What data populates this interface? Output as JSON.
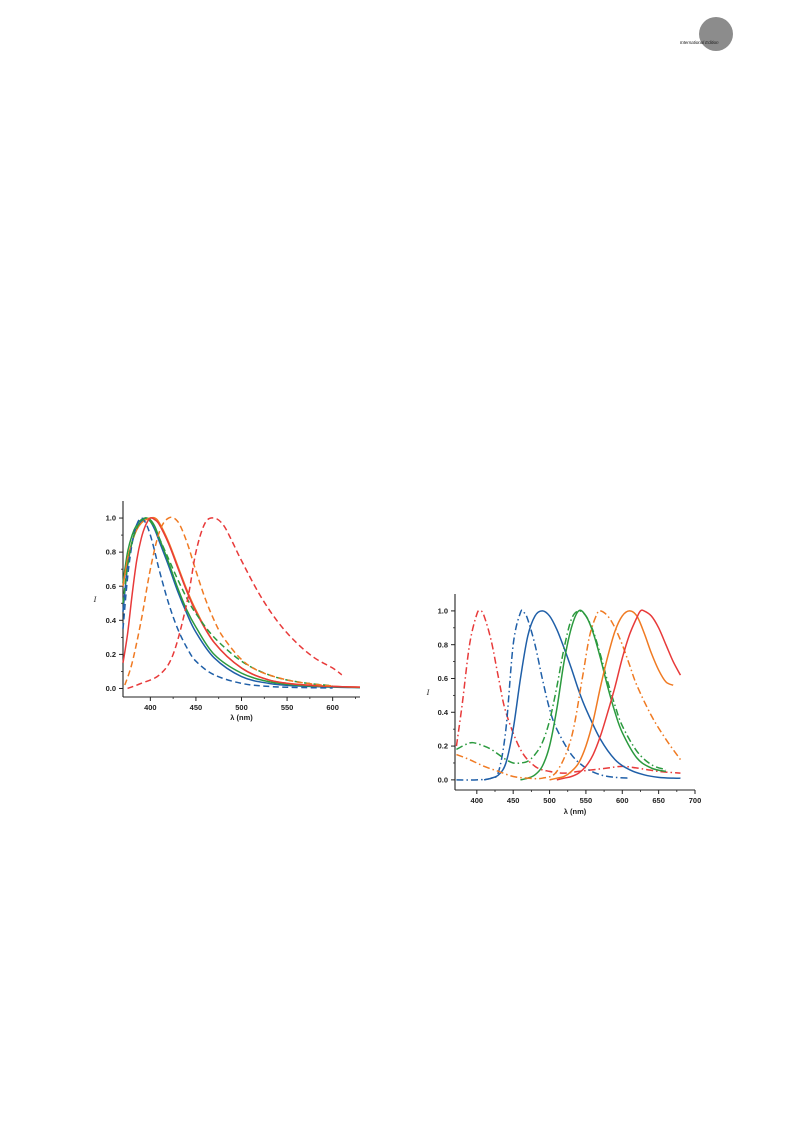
{
  "header": {
    "badge_text": "International Edition"
  },
  "chart_data": [
    {
      "type": "line",
      "xlabel": "λ (nm)",
      "ylabel": "I",
      "xlim": [
        370,
        630
      ],
      "ylim": [
        -0.05,
        1.1
      ],
      "xticks": [
        400,
        450,
        500,
        550,
        600
      ],
      "yticks": [
        0.0,
        0.2,
        0.4,
        0.6,
        0.8,
        1.0
      ],
      "grid": false,
      "legend": "none",
      "series": [
        {
          "color": "#1f5fa8",
          "dash": "solid",
          "x": [
            370,
            375,
            380,
            385,
            390,
            395,
            400,
            405,
            410,
            420,
            430,
            440,
            450,
            470,
            500,
            530,
            560,
            600,
            630
          ],
          "y": [
            0.45,
            0.72,
            0.86,
            0.94,
            0.98,
            1.0,
            0.98,
            0.93,
            0.86,
            0.72,
            0.57,
            0.44,
            0.33,
            0.18,
            0.07,
            0.03,
            0.015,
            0.008,
            0.005
          ]
        },
        {
          "color": "#2b9a3e",
          "dash": "solid",
          "x": [
            370,
            375,
            380,
            385,
            390,
            395,
            400,
            405,
            410,
            420,
            430,
            440,
            450,
            470,
            500,
            530,
            560,
            600,
            630
          ],
          "y": [
            0.62,
            0.8,
            0.9,
            0.96,
            0.99,
            1.0,
            0.99,
            0.95,
            0.88,
            0.74,
            0.59,
            0.46,
            0.36,
            0.2,
            0.09,
            0.04,
            0.02,
            0.01,
            0.006
          ]
        },
        {
          "color": "#f07a22",
          "dash": "solid",
          "x": [
            370,
            375,
            380,
            385,
            390,
            395,
            400,
            405,
            410,
            420,
            430,
            440,
            450,
            470,
            500,
            530,
            560,
            600,
            630
          ],
          "y": [
            0.6,
            0.76,
            0.86,
            0.93,
            0.97,
            0.99,
            1.0,
            1.0,
            0.97,
            0.86,
            0.72,
            0.58,
            0.46,
            0.27,
            0.12,
            0.05,
            0.025,
            0.012,
            0.008
          ]
        },
        {
          "color": "#e83a3a",
          "dash": "solid",
          "x": [
            370,
            375,
            380,
            385,
            390,
            395,
            400,
            405,
            410,
            420,
            430,
            440,
            450,
            470,
            500,
            530,
            560,
            600,
            630
          ],
          "y": [
            0.15,
            0.32,
            0.55,
            0.75,
            0.88,
            0.96,
            1.0,
            0.99,
            0.96,
            0.85,
            0.71,
            0.57,
            0.45,
            0.27,
            0.12,
            0.05,
            0.025,
            0.012,
            0.008
          ]
        },
        {
          "color": "#1f5fa8",
          "dash": "dashed",
          "x": [
            370,
            375,
            380,
            385,
            390,
            395,
            400,
            405,
            410,
            420,
            430,
            440,
            450,
            470,
            500,
            530,
            560,
            600
          ],
          "y": [
            0.35,
            0.65,
            0.85,
            0.96,
            1.0,
            0.97,
            0.9,
            0.8,
            0.69,
            0.5,
            0.35,
            0.24,
            0.16,
            0.08,
            0.03,
            0.012,
            0.006,
            0.003
          ]
        },
        {
          "color": "#2b9a3e",
          "dash": "dashed",
          "x": [
            370,
            375,
            380,
            385,
            390,
            395,
            400,
            405,
            410,
            420,
            430,
            440,
            450,
            470,
            500,
            530,
            560,
            600
          ],
          "y": [
            0.5,
            0.72,
            0.86,
            0.94,
            0.98,
            1.0,
            0.98,
            0.94,
            0.88,
            0.76,
            0.64,
            0.53,
            0.44,
            0.3,
            0.16,
            0.08,
            0.04,
            0.015
          ]
        },
        {
          "color": "#f07a22",
          "dash": "dashed",
          "x": [
            372,
            380,
            390,
            400,
            410,
            420,
            430,
            440,
            450,
            460,
            470,
            480,
            500,
            520,
            550,
            580,
            600
          ],
          "y": [
            0.02,
            0.15,
            0.4,
            0.7,
            0.92,
            1.0,
            0.98,
            0.86,
            0.69,
            0.53,
            0.4,
            0.3,
            0.17,
            0.1,
            0.05,
            0.025,
            0.015
          ]
        },
        {
          "color": "#e83a3a",
          "dash": "dashed",
          "x": [
            375,
            390,
            410,
            425,
            440,
            450,
            460,
            470,
            480,
            490,
            500,
            520,
            540,
            560,
            580,
            600,
            610
          ],
          "y": [
            0.0,
            0.03,
            0.08,
            0.2,
            0.5,
            0.8,
            0.97,
            1.0,
            0.96,
            0.86,
            0.75,
            0.55,
            0.39,
            0.27,
            0.18,
            0.12,
            0.08
          ]
        }
      ]
    },
    {
      "type": "line",
      "xlabel": "λ (nm)",
      "ylabel": "I",
      "xlim": [
        370,
        700
      ],
      "ylim": [
        -0.06,
        1.1
      ],
      "xticks": [
        400,
        450,
        500,
        550,
        600,
        650,
        700
      ],
      "yticks": [
        0.0,
        0.2,
        0.4,
        0.6,
        0.8,
        1.0
      ],
      "grid": false,
      "legend": "none",
      "series": [
        {
          "color": "#e83a3a",
          "dash": "dashdot",
          "x": [
            372,
            380,
            390,
            400,
            405,
            410,
            420,
            430,
            440,
            460,
            480,
            500,
            520,
            540,
            560,
            580,
            600,
            620,
            650,
            680
          ],
          "y": [
            0.2,
            0.45,
            0.8,
            0.98,
            1.0,
            0.97,
            0.82,
            0.6,
            0.4,
            0.18,
            0.08,
            0.05,
            0.04,
            0.05,
            0.06,
            0.07,
            0.08,
            0.07,
            0.05,
            0.04
          ]
        },
        {
          "color": "#1f5fa8",
          "dash": "dashdot",
          "x": [
            372,
            400,
            420,
            430,
            440,
            450,
            460,
            465,
            470,
            480,
            490,
            500,
            510,
            530,
            550,
            570,
            590,
            610
          ],
          "y": [
            0.0,
            0.0,
            0.01,
            0.05,
            0.3,
            0.8,
            0.99,
            0.99,
            0.95,
            0.8,
            0.6,
            0.42,
            0.3,
            0.15,
            0.07,
            0.03,
            0.015,
            0.01
          ]
        },
        {
          "color": "#1f5fa8",
          "dash": "solid",
          "x": [
            410,
            420,
            430,
            440,
            450,
            460,
            470,
            480,
            490,
            500,
            510,
            520,
            530,
            540,
            550,
            570,
            590,
            610,
            630,
            650,
            670,
            680
          ],
          "y": [
            0.0,
            0.01,
            0.03,
            0.1,
            0.3,
            0.6,
            0.85,
            0.97,
            1.0,
            0.97,
            0.89,
            0.78,
            0.66,
            0.53,
            0.42,
            0.24,
            0.12,
            0.06,
            0.03,
            0.015,
            0.01,
            0.01
          ]
        },
        {
          "color": "#2b9a3e",
          "dash": "dashdot",
          "x": [
            372,
            385,
            395,
            410,
            420,
            430,
            440,
            450,
            460,
            470,
            480,
            490,
            500,
            510,
            520,
            530,
            540,
            550,
            560,
            570,
            580,
            590,
            600,
            620,
            640,
            660
          ],
          "y": [
            0.18,
            0.21,
            0.22,
            0.2,
            0.18,
            0.15,
            0.12,
            0.1,
            0.1,
            0.11,
            0.15,
            0.22,
            0.35,
            0.55,
            0.78,
            0.95,
            1.0,
            0.97,
            0.88,
            0.74,
            0.58,
            0.44,
            0.32,
            0.17,
            0.09,
            0.06
          ]
        },
        {
          "color": "#2b9a3e",
          "dash": "solid",
          "x": [
            460,
            470,
            480,
            490,
            500,
            510,
            520,
            530,
            540,
            550,
            560,
            570,
            580,
            590,
            600,
            620,
            640,
            660
          ],
          "y": [
            0.0,
            0.01,
            0.03,
            0.08,
            0.2,
            0.42,
            0.7,
            0.9,
            1.0,
            0.97,
            0.87,
            0.72,
            0.55,
            0.4,
            0.28,
            0.13,
            0.07,
            0.05
          ]
        },
        {
          "color": "#f07a22",
          "dash": "dashdot",
          "x": [
            372,
            390,
            410,
            430,
            450,
            470,
            490,
            510,
            530,
            545,
            555,
            565,
            570,
            580,
            590,
            600,
            610,
            620,
            640,
            660,
            680
          ],
          "y": [
            0.15,
            0.12,
            0.08,
            0.05,
            0.02,
            0.01,
            0.01,
            0.05,
            0.25,
            0.6,
            0.85,
            0.98,
            1.0,
            0.97,
            0.9,
            0.8,
            0.68,
            0.56,
            0.38,
            0.24,
            0.12
          ]
        },
        {
          "color": "#f07a22",
          "dash": "solid",
          "x": [
            500,
            510,
            520,
            530,
            540,
            550,
            560,
            570,
            580,
            590,
            600,
            610,
            620,
            630,
            640,
            650,
            660,
            670
          ],
          "y": [
            0.0,
            0.01,
            0.02,
            0.05,
            0.1,
            0.2,
            0.35,
            0.55,
            0.73,
            0.88,
            0.97,
            1.0,
            0.97,
            0.87,
            0.75,
            0.65,
            0.58,
            0.56
          ]
        },
        {
          "color": "#e83a3a",
          "dash": "solid",
          "x": [
            510,
            520,
            530,
            540,
            550,
            560,
            570,
            580,
            590,
            600,
            610,
            620,
            625,
            630,
            640,
            650,
            660,
            670,
            680
          ],
          "y": [
            0.0,
            0.01,
            0.02,
            0.04,
            0.08,
            0.15,
            0.26,
            0.4,
            0.55,
            0.72,
            0.86,
            0.96,
            1.0,
            1.0,
            0.97,
            0.9,
            0.8,
            0.7,
            0.62
          ]
        }
      ]
    }
  ]
}
